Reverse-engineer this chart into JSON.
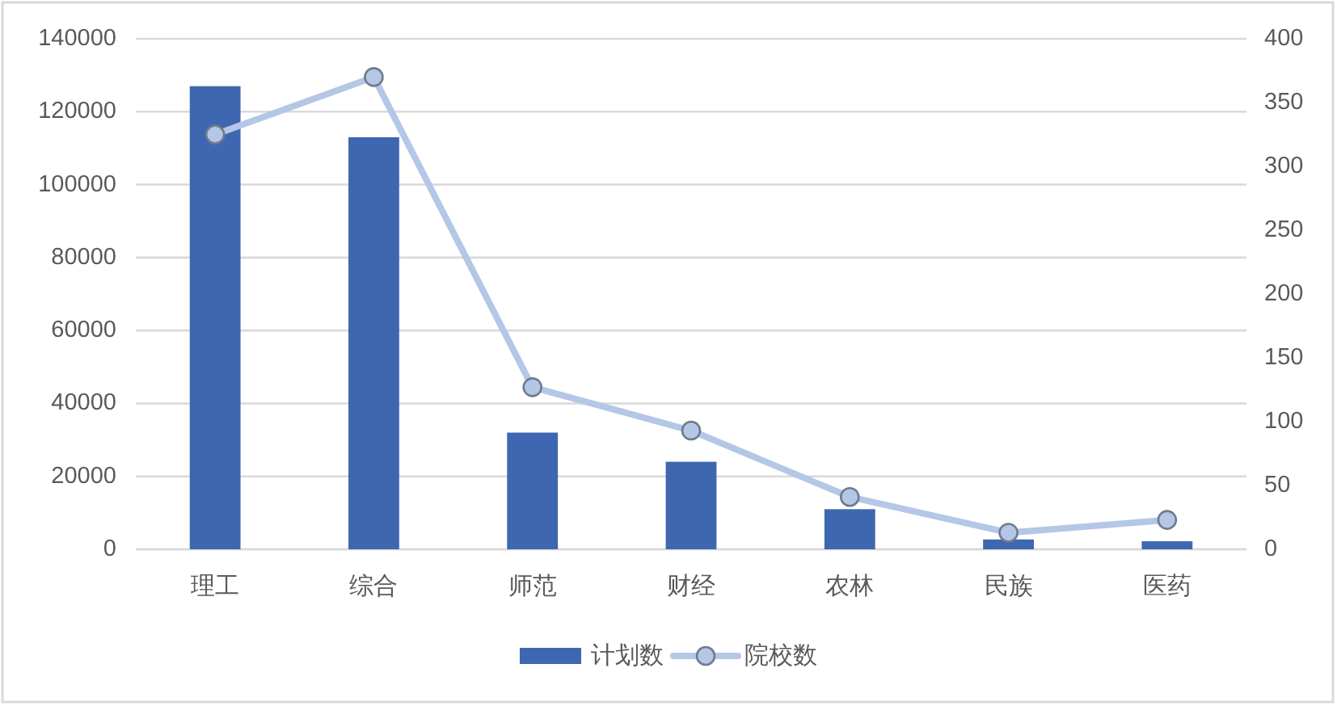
{
  "chart_data": {
    "type": "bar",
    "categories": [
      "理工",
      "综合",
      "师范",
      "财经",
      "农林",
      "民族",
      "医药"
    ],
    "series": [
      {
        "name": "计划数",
        "color": "#3f66b0",
        "values": [
          127000,
          113000,
          32000,
          24000,
          11000,
          2700,
          2200
        ]
      },
      {
        "name": "院校数",
        "type": "line",
        "axis": "y2",
        "color": "#b4c7e7",
        "values": [
          325,
          370,
          127,
          93,
          41,
          13,
          23
        ]
      }
    ],
    "ylim": [
      0,
      140000
    ],
    "yticks": [
      0,
      20000,
      40000,
      60000,
      80000,
      100000,
      120000,
      140000
    ],
    "y2lim": [
      0,
      400
    ],
    "y2ticks": [
      0,
      50,
      100,
      150,
      200,
      250,
      300,
      350,
      400
    ],
    "grid": "y",
    "legend": "bottom",
    "marker": "circle"
  }
}
